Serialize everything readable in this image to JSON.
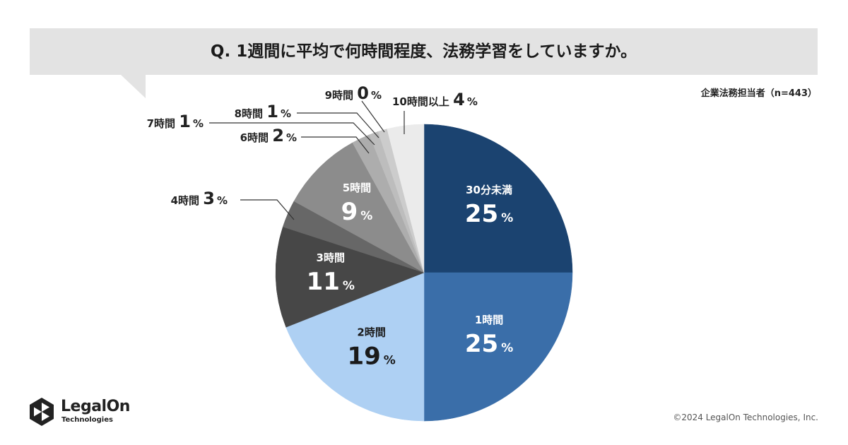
{
  "header": {
    "question": "Q. 1週間に平均で何時間程度、法務学習をしていますか。",
    "sample": "企業法務担当者（n=443）"
  },
  "footer": {
    "logo_name": "LegalOn",
    "logo_sub": "Technologies",
    "copyright": "©2024 LegalOn Technologies, Inc."
  },
  "chart_data": {
    "type": "pie",
    "start": "12 o'clock",
    "direction": "clockwise",
    "slices": [
      {
        "label": "30分未満",
        "value": 25,
        "color": "#1b4370",
        "label_color": "#ffffff",
        "placement": "inside"
      },
      {
        "label": "1時間",
        "value": 25,
        "color": "#3a6ea9",
        "label_color": "#ffffff",
        "placement": "inside"
      },
      {
        "label": "2時間",
        "value": 19,
        "color": "#aed0f3",
        "label_color": "#1a1a1a",
        "placement": "inside"
      },
      {
        "label": "3時間",
        "value": 11,
        "color": "#474747",
        "label_color": "#ffffff",
        "placement": "inside"
      },
      {
        "label": "4時間",
        "value": 3,
        "color": "#676767",
        "label_color": "#222222",
        "placement": "outside"
      },
      {
        "label": "5時間",
        "value": 9,
        "color": "#8c8c8c",
        "label_color": "#ffffff",
        "placement": "inside"
      },
      {
        "label": "6時間",
        "value": 2,
        "color": "#adadad",
        "label_color": "#222222",
        "placement": "outside"
      },
      {
        "label": "7時間",
        "value": 1,
        "color": "#bdbdbd",
        "label_color": "#222222",
        "placement": "outside"
      },
      {
        "label": "8時間",
        "value": 1,
        "color": "#cccccc",
        "label_color": "#222222",
        "placement": "outside"
      },
      {
        "label": "9時間",
        "value": 0,
        "color": "#d8d8d8",
        "label_color": "#222222",
        "placement": "outside"
      },
      {
        "label": "10時間以上",
        "value": 4,
        "color": "#ebebeb",
        "label_color": "#222222",
        "placement": "outside"
      }
    ],
    "unit": "%"
  }
}
